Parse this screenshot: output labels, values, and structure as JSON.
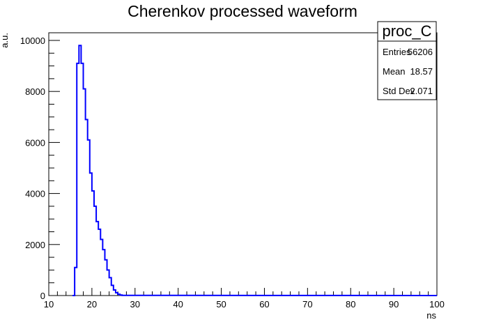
{
  "chart_data": {
    "type": "histogram",
    "title": "Cherenkov processed waveform",
    "xlabel": "ns",
    "ylabel": "a.u.",
    "xlim": [
      10,
      100
    ],
    "ylim": [
      0,
      10300
    ],
    "x_ticks": [
      10,
      20,
      30,
      40,
      50,
      60,
      70,
      80,
      90,
      100
    ],
    "y_ticks": [
      0,
      2000,
      4000,
      6000,
      8000,
      10000
    ],
    "line_color": "#0000ff",
    "bin_width": 0.5,
    "series": [
      {
        "x": [
          15.5,
          16.0,
          16.5,
          17.0,
          17.5,
          18.0,
          18.5,
          19.0,
          19.5,
          20.0,
          20.5,
          21.0,
          21.5,
          22.0,
          22.5,
          23.0,
          23.5,
          24.0,
          24.5,
          25.0,
          25.5,
          26.0,
          26.5,
          27.0
        ],
        "values": [
          0,
          1100,
          9100,
          9800,
          9100,
          8100,
          6900,
          6100,
          4800,
          4100,
          3500,
          2900,
          2600,
          2200,
          1800,
          1400,
          1000,
          700,
          400,
          220,
          110,
          50,
          20,
          8
        ]
      }
    ],
    "stats_box": {
      "name": "proc_C",
      "entries_label": "Entries",
      "entries": "56206",
      "mean_label": "Mean",
      "mean": "18.57",
      "stddev_label": "Std Dev",
      "stddev": "2.071"
    }
  }
}
